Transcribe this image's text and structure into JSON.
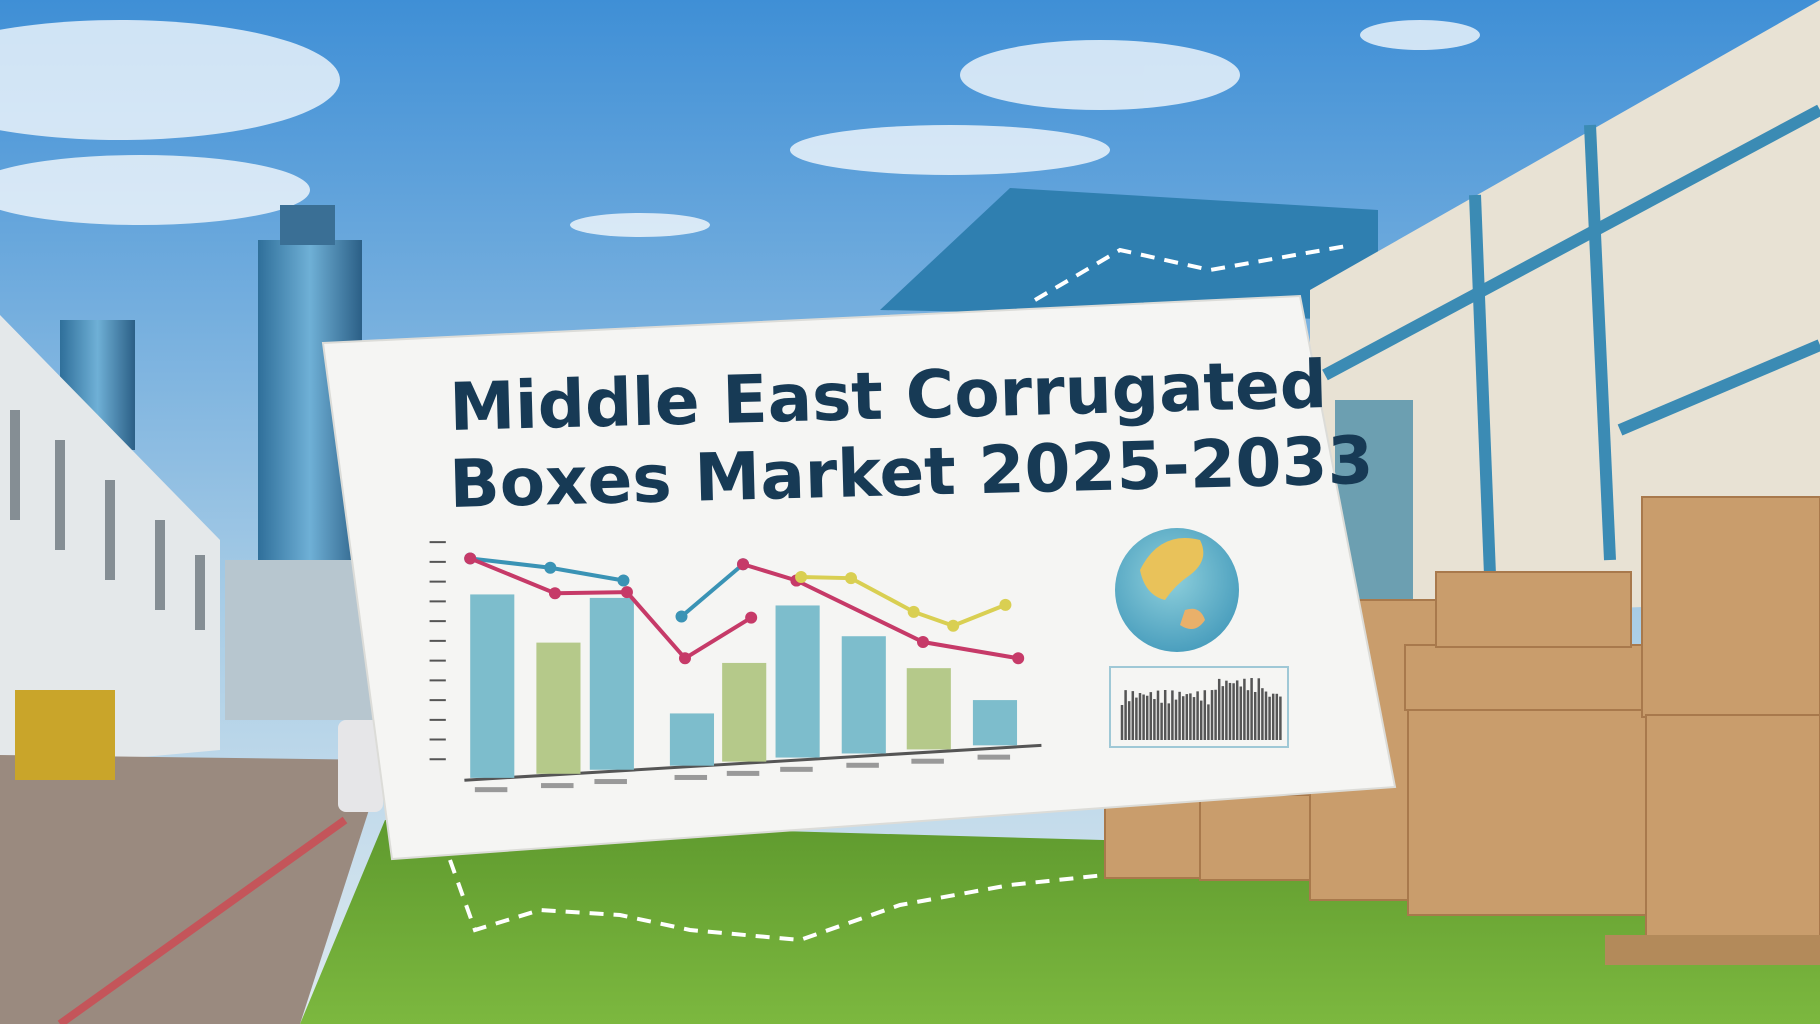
{
  "poster": {
    "title_line1": "Middle East Corrugated",
    "title_line2": "Boxes Market 2025-2033"
  },
  "colors": {
    "title": "#173a55",
    "bar_blue": "#7dbdcc",
    "bar_green": "#b5c98a",
    "line_blue": "#3a93b5",
    "line_red": "#c63a68",
    "line_yellow": "#d9cf52",
    "grass": "#6ea83a",
    "sky": "#4a95d8"
  },
  "illustration": {
    "bars": [
      {
        "value": 158,
        "color": "blue"
      },
      {
        "value": 113,
        "color": "green"
      },
      {
        "value": 148,
        "color": "blue"
      },
      {
        "value": 45,
        "color": "blue"
      },
      {
        "value": 85,
        "color": "green"
      },
      {
        "value": 131,
        "color": "blue"
      },
      {
        "value": 101,
        "color": "blue"
      },
      {
        "value": 70,
        "color": "green"
      },
      {
        "value": 39,
        "color": "blue"
      }
    ],
    "globe_icon": "globe-icon",
    "mini_chart_icon": "mini-bar-chart-icon"
  }
}
